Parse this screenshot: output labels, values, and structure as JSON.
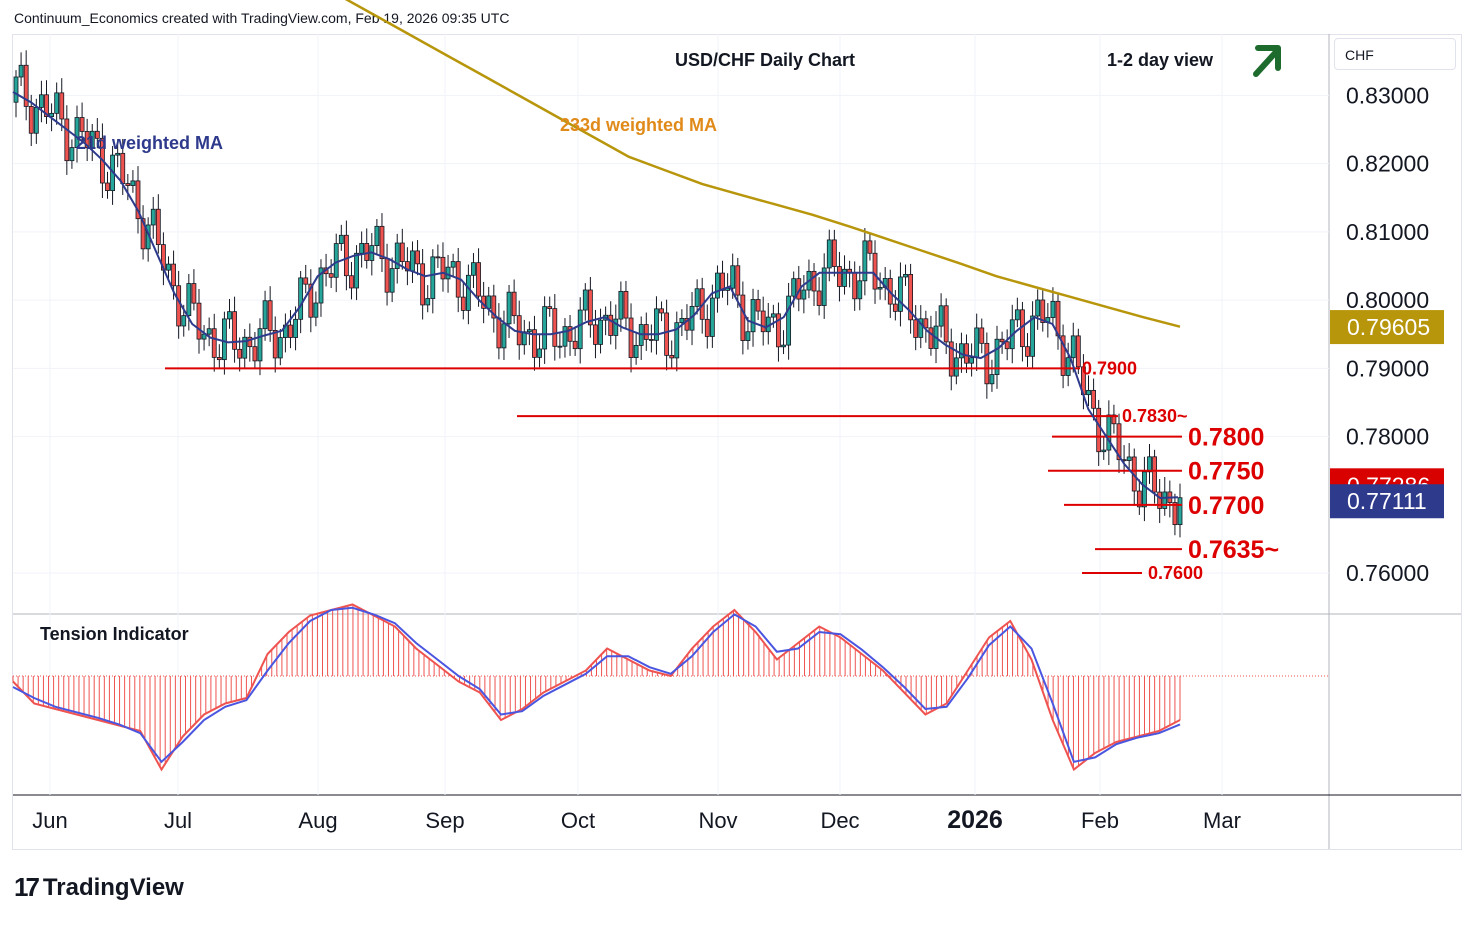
{
  "header": {
    "attribution": "Continuum_Economics created with TradingView.com, Feb 19, 2026 09:35 UTC"
  },
  "chart_title": "USD/CHF Daily Chart",
  "view_label": "1-2 day view",
  "view_arrow_icon": "arrow-up-right-icon",
  "currency_label": "CHF",
  "brand": {
    "logo": "TradingView",
    "mark": "17"
  },
  "colors": {
    "up": "#26a69a",
    "down": "#ef5350",
    "ma21": "#2e3a8c",
    "ma233": "#b8960c",
    "level": "#dd0000",
    "tension": "#ef5350",
    "arrow": "#1e6b2e"
  },
  "annotations": {
    "ma21_label": "21d weighted MA",
    "ma233_label": "233d weighted MA",
    "tension_label": "Tension Indicator"
  },
  "chart_data": {
    "type": "candlestick",
    "title": "USD/CHF Daily Chart",
    "y_axis_ticks": [
      "0.83000",
      "0.82000",
      "0.81000",
      "0.80000",
      "0.79000",
      "0.78000",
      "0.76000"
    ],
    "ylim": [
      0.754,
      0.839
    ],
    "x_axis_ticks": [
      "Jun",
      "Jul",
      "Aug",
      "Sep",
      "Oct",
      "Nov",
      "Dec",
      "2026",
      "Feb",
      "Mar"
    ],
    "price_tags": [
      {
        "label": "0.79605",
        "value": 0.79605,
        "role": "233d MA"
      },
      {
        "label": "0.77286",
        "value": 0.77286,
        "role": "last price"
      },
      {
        "label": "0.77111",
        "value": 0.77111,
        "role": "21d MA"
      }
    ],
    "levels": [
      {
        "label": "0.7900",
        "value": 0.79,
        "style": "small"
      },
      {
        "label": "0.7830~",
        "value": 0.783,
        "style": "small"
      },
      {
        "label": "0.7800",
        "value": 0.78,
        "style": "large"
      },
      {
        "label": "0.7750",
        "value": 0.775,
        "style": "large"
      },
      {
        "label": "0.7700",
        "value": 0.77,
        "style": "large"
      },
      {
        "label": "0.7635~",
        "value": 0.7635,
        "style": "large"
      },
      {
        "label": "0.7600",
        "value": 0.76,
        "style": "small"
      }
    ],
    "ma21_path": [
      0.8305,
      0.829,
      0.827,
      0.825,
      0.823,
      0.8205,
      0.8175,
      0.813,
      0.807,
      0.801,
      0.7965,
      0.7945,
      0.7938,
      0.794,
      0.7948,
      0.7955,
      0.799,
      0.8035,
      0.8055,
      0.8065,
      0.807,
      0.806,
      0.8045,
      0.8035,
      0.804,
      0.803,
      0.8,
      0.7975,
      0.7955,
      0.795,
      0.795,
      0.7955,
      0.7968,
      0.7975,
      0.796,
      0.795,
      0.795,
      0.7957,
      0.7978,
      0.801,
      0.802,
      0.797,
      0.796,
      0.7975,
      0.802,
      0.804,
      0.804,
      0.804,
      0.804,
      0.801,
      0.7985,
      0.7955,
      0.7935,
      0.792,
      0.7915,
      0.793,
      0.7955,
      0.7975,
      0.7965,
      0.7915,
      0.784,
      0.78,
      0.776,
      0.773,
      0.771,
      0.7711
    ],
    "ma233_path": [
      0.845,
      0.842,
      0.839,
      0.836,
      0.833,
      0.83,
      0.827,
      0.824,
      0.821,
      0.819,
      0.817,
      0.8155,
      0.814,
      0.8125,
      0.8108,
      0.809,
      0.8072,
      0.8054,
      0.8035,
      0.802,
      0.8005,
      0.799,
      0.7975,
      0.7961
    ],
    "tension_histogram_path": [
      -0.05,
      -0.25,
      -0.3,
      -0.35,
      -0.4,
      -0.45,
      -0.5,
      -0.85,
      -0.55,
      -0.35,
      -0.25,
      -0.2,
      0.2,
      0.4,
      0.55,
      0.6,
      0.65,
      0.55,
      0.45,
      0.25,
      0.1,
      -0.05,
      -0.15,
      -0.4,
      -0.3,
      -0.15,
      -0.05,
      0.05,
      0.25,
      0.15,
      0.05,
      0.0,
      0.25,
      0.45,
      0.6,
      0.4,
      0.15,
      0.3,
      0.45,
      0.35,
      0.2,
      0.05,
      -0.15,
      -0.35,
      -0.25,
      0.05,
      0.35,
      0.5,
      0.15,
      -0.4,
      -0.85,
      -0.7,
      -0.6,
      -0.55,
      -0.5,
      -0.4
    ],
    "tension_signal_path": [
      -0.1,
      -0.2,
      -0.28,
      -0.33,
      -0.38,
      -0.44,
      -0.52,
      -0.78,
      -0.6,
      -0.4,
      -0.28,
      -0.22,
      0.05,
      0.3,
      0.5,
      0.6,
      0.62,
      0.56,
      0.48,
      0.3,
      0.15,
      0.0,
      -0.12,
      -0.35,
      -0.32,
      -0.18,
      -0.08,
      0.02,
      0.18,
      0.18,
      0.08,
      0.02,
      0.18,
      0.4,
      0.56,
      0.45,
      0.22,
      0.25,
      0.4,
      0.38,
      0.24,
      0.08,
      -0.1,
      -0.3,
      -0.28,
      -0.02,
      0.28,
      0.45,
      0.25,
      -0.25,
      -0.78,
      -0.74,
      -0.62,
      -0.56,
      -0.52,
      -0.44
    ]
  }
}
